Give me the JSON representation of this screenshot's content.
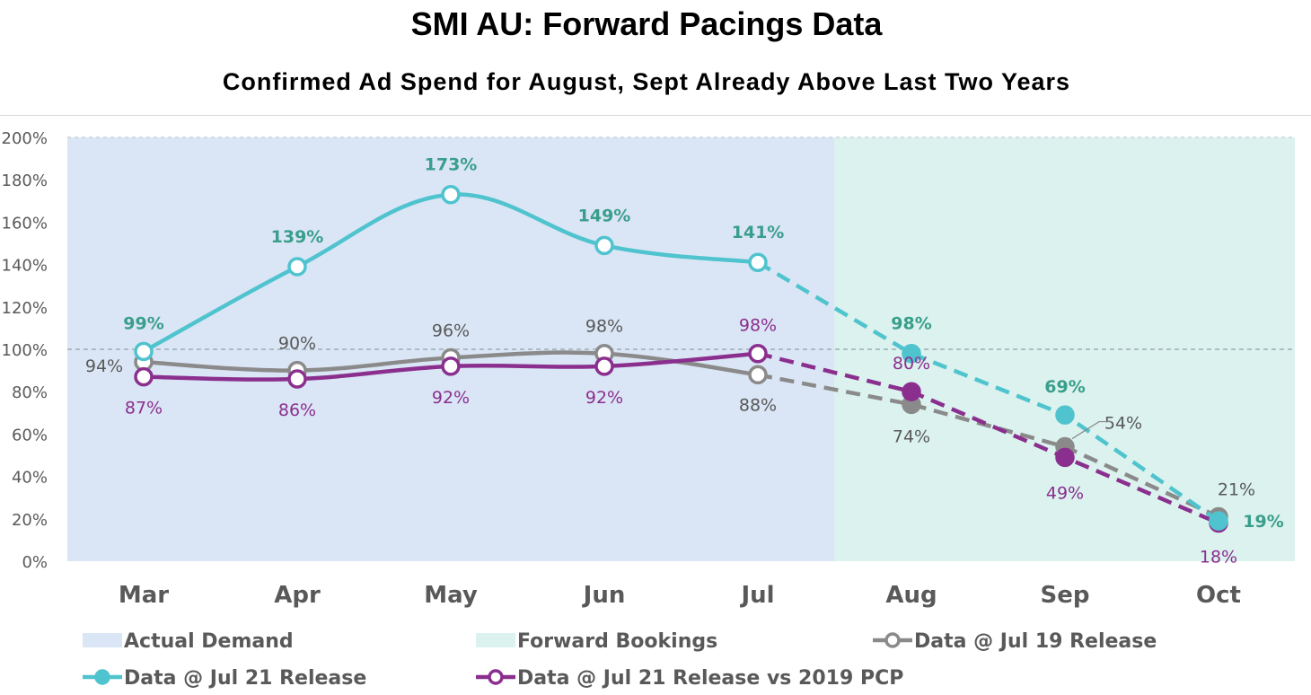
{
  "chart_data": {
    "type": "line",
    "title": "SMI AU: Forward Pacings Data",
    "subtitle": "Confirmed Ad Spend for August, Sept Already Above Last Two Years",
    "categories": [
      "Mar",
      "Apr",
      "May",
      "Jun",
      "Jul",
      "Aug",
      "Sep",
      "Oct"
    ],
    "y_ticks": [
      "0%",
      "20%",
      "40%",
      "60%",
      "80%",
      "100%",
      "120%",
      "140%",
      "160%",
      "180%",
      "200%"
    ],
    "ylim": [
      0,
      200
    ],
    "reference_line": 100,
    "regions": [
      {
        "name": "Actual Demand",
        "from": "Mar",
        "to": "Jul",
        "color": "#dae6f5"
      },
      {
        "name": "Forward Bookings",
        "from": "Aug",
        "to": "Oct",
        "color": "#dbf2ee"
      }
    ],
    "series": [
      {
        "name": "Data @ Jul 19 Release",
        "color": "#8a8a8a",
        "label_color": "#595959",
        "values": [
          94,
          90,
          96,
          98,
          88,
          74,
          54,
          21
        ],
        "labels": [
          "94%",
          "90%",
          "96%",
          "98%",
          "88%",
          "74%",
          "54%",
          "21%"
        ]
      },
      {
        "name": "Data @ Jul 21 Release",
        "color": "#4fc3ce",
        "label_color": "#3a9e8c",
        "values": [
          99,
          139,
          173,
          149,
          141,
          98,
          69,
          19
        ],
        "labels": [
          "99%",
          "139%",
          "173%",
          "149%",
          "141%",
          "98%",
          "69%",
          "19%"
        ]
      },
      {
        "name": "Data @ Jul 21 Release vs 2019 PCP",
        "color": "#8b2f8f",
        "label_color": "#8b2f8f",
        "values": [
          87,
          86,
          92,
          92,
          98,
          80,
          49,
          18
        ],
        "labels": [
          "87%",
          "86%",
          "92%",
          "92%",
          "98%",
          "80%",
          "49%",
          "18%"
        ]
      }
    ]
  }
}
